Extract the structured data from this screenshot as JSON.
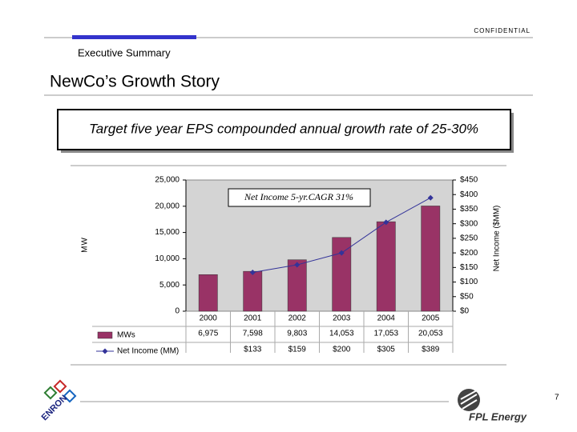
{
  "confidential": "CONFIDENTIAL",
  "section": "Executive Summary",
  "title": "NewCo’s Growth Story",
  "callout": "Target five year EPS compounded annual growth rate of 25-30%",
  "footer": {
    "page_number": "7",
    "logos": [
      "ENRON",
      "FPL Energy"
    ]
  },
  "chart_data": {
    "type": "bar_line",
    "categories": [
      "2000",
      "2001",
      "2002",
      "2003",
      "2004",
      "2005"
    ],
    "series": [
      {
        "name": "MWs",
        "type": "bar",
        "color": "#993366",
        "axis": "y",
        "values": [
          6975,
          7598,
          9803,
          14053,
          17053,
          20053
        ],
        "value_labels": [
          "6,975",
          "7,598",
          "9,803",
          "14,053",
          "17,053",
          "20,053"
        ]
      },
      {
        "name": "Net Income (MM)",
        "type": "line",
        "color": "#333399",
        "axis": "y2",
        "values": [
          null,
          133,
          159,
          200,
          305,
          389
        ],
        "value_labels": [
          null,
          "$133",
          "$159",
          "$200",
          "$305",
          "$389"
        ]
      }
    ],
    "ylabel": "MW",
    "y2label": "Net Income ($MM)",
    "annotation": "Net Income 5-yr.CAGR 31%",
    "ylim": [
      0,
      25000
    ],
    "yticks": [
      0,
      {
        "value": 5000,
        "label": "5,000"
      },
      {
        "value": 10000,
        "label": "10,000"
      },
      {
        "value": 15000,
        "label": "15,000"
      },
      {
        "value": 20000,
        "label": "20,000"
      },
      {
        "value": 25000,
        "label": "25,000"
      }
    ],
    "y2lim": [
      0,
      450
    ],
    "y2ticks": [
      {
        "value": 0,
        "label": "$0"
      },
      {
        "value": 50,
        "label": "$50"
      },
      {
        "value": 100,
        "label": "$100"
      },
      {
        "value": 150,
        "label": "$150"
      },
      {
        "value": 200,
        "label": "$200"
      },
      {
        "value": 250,
        "label": "$250"
      },
      {
        "value": 300,
        "label": "$300"
      },
      {
        "value": 350,
        "label": "$350"
      },
      {
        "value": 400,
        "label": "$400"
      },
      {
        "value": 450,
        "label": "$450"
      }
    ],
    "plot_background": "#d4d4d4"
  }
}
